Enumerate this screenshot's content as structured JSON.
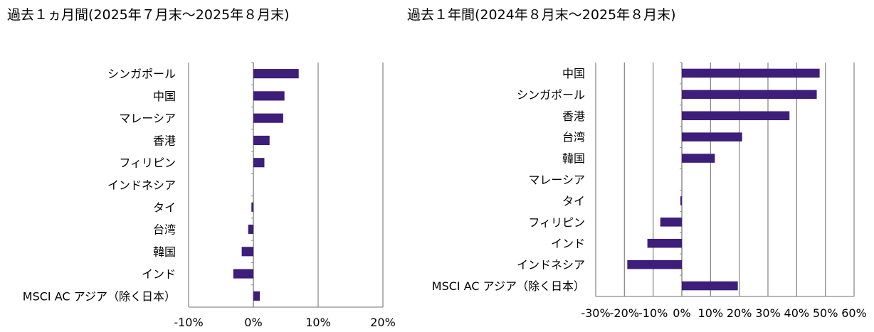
{
  "charts": {
    "left": {
      "title": "過去１ヵ月間(2025年７月末～2025年８月末)"
    },
    "right": {
      "title": "過去１年間(2024年８月末～2025年８月末)"
    }
  },
  "chart_data": [
    {
      "type": "bar",
      "orientation": "horizontal",
      "title": "過去１ヵ月間(2025年７月末～2025年８月末)",
      "categories": [
        "シンガポール",
        "中国",
        "マレーシア",
        "香港",
        "フィリピン",
        "インドネシア",
        "タイ",
        "台湾",
        "韓国",
        "インド",
        "MSCI AC アジア（除く日本）"
      ],
      "values": [
        7.0,
        4.8,
        4.6,
        2.5,
        1.7,
        0.0,
        -0.3,
        -0.8,
        -1.8,
        -3.1,
        1.0
      ],
      "xlim": [
        -10,
        20
      ],
      "xticks": [
        -10,
        0,
        10,
        20
      ],
      "xtick_labels": [
        "-10%",
        "0%",
        "10%",
        "20%"
      ],
      "grid": "vertical",
      "bar_color": "#3d1e7a"
    },
    {
      "type": "bar",
      "orientation": "horizontal",
      "title": "過去１年間(2024年８月末～2025年８月末)",
      "categories": [
        "中国",
        "シンガポール",
        "香港",
        "台湾",
        "韓国",
        "マレーシア",
        "タイ",
        "フィリピン",
        "インド",
        "インドネシア",
        "MSCI AC アジア（除く日本）"
      ],
      "values": [
        48.0,
        47.0,
        37.5,
        21.0,
        11.5,
        0.0,
        -0.5,
        -7.5,
        -12.0,
        -19.0,
        19.5
      ],
      "xlim": [
        -30,
        60
      ],
      "xticks": [
        -30,
        -20,
        -10,
        0,
        10,
        20,
        30,
        40,
        50,
        60
      ],
      "xtick_labels": [
        "-30%",
        "-20%",
        "-10%",
        "0%",
        "10%",
        "20%",
        "30%",
        "40%",
        "50%",
        "60%"
      ],
      "grid": "vertical",
      "bar_color": "#3d1e7a"
    }
  ]
}
